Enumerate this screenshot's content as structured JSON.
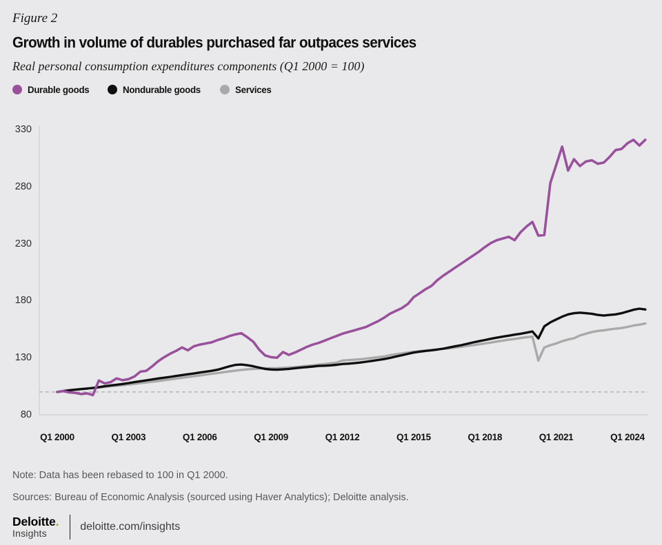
{
  "figure_label": "Figure 2",
  "title": "Growth in volume of durables purchased far outpaces services",
  "subtitle": "Real personal consumption expenditures components (Q1 2000 = 100)",
  "legend": {
    "items": [
      {
        "label": "Durable goods",
        "color": "#99519c"
      },
      {
        "label": "Nondurable goods",
        "color": "#0f0f0f"
      },
      {
        "label": "Services",
        "color": "#a9a9a9"
      }
    ]
  },
  "chart_data": {
    "type": "line",
    "title": "Growth in volume of durables purchased far outpaces services",
    "subtitle": "Real personal consumption expenditures components (Q1 2000 = 100)",
    "x_start": "2000-Q1",
    "x_step": "quarter",
    "n_points": 100,
    "categories": [
      "Q1 2000",
      "Q1 2003",
      "Q1 2006",
      "Q1 2009",
      "Q1 2012",
      "Q1 2015",
      "Q1 2018",
      "Q1 2021",
      "Q1 2024"
    ],
    "yticks": [
      80,
      130,
      180,
      230,
      280,
      330
    ],
    "ylim": [
      80,
      330
    ],
    "baseline": {
      "value": 100,
      "style": "dashed",
      "color": "#b3b3b7"
    },
    "grid": false,
    "legend_position": "top-left",
    "series": [
      {
        "name": "Durable goods",
        "color": "#99519c",
        "values": [
          100,
          100.8,
          99.6,
          99.2,
          98.2,
          98.8,
          97.3,
          110,
          107.5,
          108.6,
          111.9,
          110.3,
          111.2,
          113.6,
          117.8,
          118.5,
          122.5,
          127,
          130.5,
          133.5,
          136,
          139,
          136.5,
          140,
          141.5,
          142.5,
          143.5,
          145.5,
          147,
          149,
          150.5,
          151.5,
          148,
          144,
          137,
          132,
          130.5,
          130,
          135,
          132.5,
          134.5,
          137,
          139.5,
          141.5,
          143,
          145,
          147,
          149,
          151,
          152.5,
          154,
          155.5,
          157,
          159.5,
          162,
          165,
          168.5,
          171,
          173.5,
          177,
          183,
          186.5,
          190,
          193,
          198,
          202,
          205.5,
          209,
          212.5,
          216,
          219.5,
          223,
          227,
          230.5,
          233,
          234.5,
          236,
          233,
          240,
          245,
          249,
          237,
          237.5,
          283,
          299,
          315,
          294,
          304,
          298,
          302,
          303,
          300,
          301,
          306,
          312,
          313,
          318,
          321,
          316,
          321
        ]
      },
      {
        "name": "Nondurable goods",
        "color": "#0f0f0f",
        "values": [
          100,
          100.8,
          101.5,
          102,
          102.5,
          103,
          103.5,
          104.2,
          105,
          105.7,
          106.3,
          107,
          107.8,
          108.6,
          109.4,
          110.2,
          111,
          111.8,
          112.5,
          113.2,
          114,
          114.8,
          115.5,
          116.2,
          117,
          117.8,
          118.5,
          119.5,
          121,
          122.5,
          123.7,
          124,
          123.4,
          122.5,
          121.3,
          120.2,
          119.7,
          119.5,
          119.8,
          120.2,
          120.8,
          121.3,
          121.8,
          122.3,
          122.8,
          123,
          123.3,
          123.8,
          124.5,
          124.8,
          125.2,
          125.8,
          126.5,
          127.2,
          128,
          128.8,
          129.8,
          131,
          132.2,
          133.4,
          134.5,
          135.3,
          136,
          136.5,
          137.2,
          138,
          139,
          140,
          141,
          142.2,
          143.4,
          144.5,
          145.5,
          146.6,
          147.6,
          148.5,
          149.3,
          150.2,
          151,
          152,
          153,
          146.9,
          157.5,
          161,
          163.5,
          166,
          168,
          169,
          169.5,
          169,
          168.5,
          167.5,
          167,
          167.5,
          168,
          169,
          170.5,
          172,
          173,
          172.3
        ]
      },
      {
        "name": "Services",
        "color": "#a9a9a9",
        "values": [
          100,
          100.7,
          101.3,
          101.9,
          102.4,
          102.9,
          103.4,
          103.9,
          104.5,
          105,
          105.5,
          106,
          106.5,
          107.1,
          107.7,
          108.3,
          109,
          109.6,
          110.3,
          111,
          111.7,
          112.4,
          113.1,
          113.8,
          114.5,
          115.2,
          115.9,
          116.6,
          117.3,
          118,
          118.7,
          119.3,
          119.8,
          120.2,
          120.5,
          120.7,
          120.8,
          120.9,
          121.1,
          121.4,
          121.8,
          122.3,
          122.8,
          123.3,
          123.9,
          124.5,
          125.1,
          125.7,
          127.5,
          127.9,
          128.3,
          128.7,
          129.2,
          129.8,
          130.4,
          131,
          132.2,
          133,
          133.8,
          134.5,
          135.2,
          135.8,
          136.3,
          136.8,
          137.3,
          137.8,
          138.3,
          139,
          139.6,
          140.3,
          141,
          141.8,
          142.5,
          143.3,
          144.2,
          145,
          145.8,
          146.5,
          147.3,
          148,
          148.5,
          127.5,
          139,
          141,
          142.5,
          144.5,
          146,
          147,
          149.5,
          151,
          152.5,
          153.5,
          154,
          154.8,
          155.5,
          156,
          157,
          158.2,
          159,
          160
        ]
      }
    ]
  },
  "note": "Note: Data has been rebased to 100 in Q1 2000.",
  "sources": "Sources: Bureau of Economic Analysis (sourced using Haver Analytics); Deloitte analysis.",
  "footer": {
    "logo_main": "Deloitte",
    "logo_dot": ".",
    "logo_sub": "Insights",
    "url": "deloitte.com/insights"
  }
}
